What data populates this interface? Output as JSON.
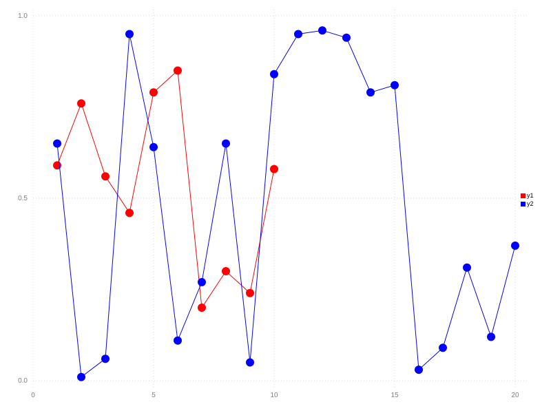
{
  "chart_data": {
    "type": "line",
    "title": "",
    "xlabel": "",
    "ylabel": "",
    "xlim": [
      0,
      20.6
    ],
    "ylim": [
      0,
      1.0
    ],
    "grid": "dotted",
    "grid_color": "#d9d9d9",
    "tick_label_color": "#808080",
    "legend_position": "right",
    "marker": "circle",
    "x_ticks": {
      "values": [
        0,
        5,
        10,
        15,
        20
      ],
      "labels": [
        "0",
        "5",
        "10",
        "15",
        "20"
      ]
    },
    "y_ticks": {
      "values": [
        0,
        0.5,
        1.0
      ],
      "labels": [
        "0.0",
        "0.5",
        "1.0"
      ]
    },
    "series": [
      {
        "name": "y1",
        "color": "#ff0000",
        "x": [
          1,
          2,
          3,
          4,
          5,
          6,
          7,
          8,
          9,
          10
        ],
        "y": [
          0.59,
          0.76,
          0.56,
          0.46,
          0.79,
          0.85,
          0.2,
          0.3,
          0.24,
          0.58
        ]
      },
      {
        "name": "y2",
        "color": "#0000ff",
        "x": [
          1,
          2,
          3,
          4,
          5,
          6,
          7,
          8,
          9,
          10,
          11,
          12,
          13,
          14,
          15,
          16,
          17,
          18,
          19,
          20
        ],
        "y": [
          0.65,
          0.01,
          0.06,
          0.95,
          0.64,
          0.11,
          0.27,
          0.65,
          0.05,
          0.84,
          0.95,
          0.96,
          0.94,
          0.79,
          0.81,
          0.03,
          0.09,
          0.31,
          0.12,
          0.37
        ]
      }
    ]
  }
}
